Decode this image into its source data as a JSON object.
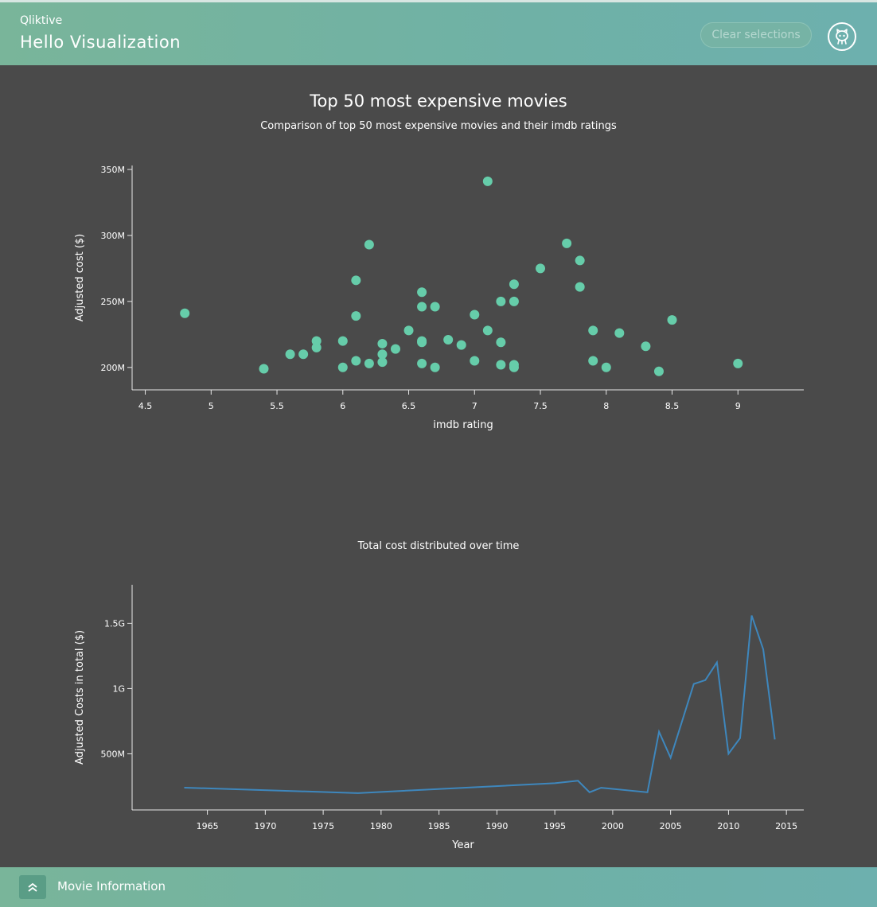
{
  "header": {
    "brand": "Qliktive",
    "title": "Hello Visualization",
    "clear_label": "Clear selections",
    "github_icon": "github-octocat-icon"
  },
  "footer": {
    "label": "Movie Information",
    "toggle_icon": "double-chevron-up-icon"
  },
  "colors": {
    "header": "#6fb1a6",
    "background": "#4a4a4a",
    "scatter_point": "#66cdaa",
    "line": "#3e87bd"
  },
  "chart_data": [
    {
      "type": "scatter",
      "title": "Top 50 most expensive movies",
      "subtitle": "Comparison of top 50 most expensive movies and their imdb ratings",
      "xlabel": "imdb rating",
      "ylabel": "Adjusted cost ($)",
      "xlim": [
        4.4,
        9.5
      ],
      "ylim": [
        183,
        353
      ],
      "x_ticks": [
        4.5,
        5,
        5.5,
        6,
        6.5,
        7,
        7.5,
        8,
        8.5,
        9
      ],
      "x_tick_labels": [
        "4.5",
        "5",
        "5.5",
        "6",
        "6.5",
        "7",
        "7.5",
        "8",
        "8.5",
        "9"
      ],
      "y_ticks": [
        200,
        250,
        300,
        350
      ],
      "y_tick_labels": [
        "200M",
        "250M",
        "300M",
        "350M"
      ],
      "points": [
        [
          4.8,
          241
        ],
        [
          5.4,
          199
        ],
        [
          5.6,
          210
        ],
        [
          5.7,
          210
        ],
        [
          5.8,
          220
        ],
        [
          5.8,
          215
        ],
        [
          6.0,
          220
        ],
        [
          6.0,
          200
        ],
        [
          6.1,
          266
        ],
        [
          6.1,
          239
        ],
        [
          6.1,
          205
        ],
        [
          6.2,
          293
        ],
        [
          6.2,
          203
        ],
        [
          6.3,
          218
        ],
        [
          6.3,
          210
        ],
        [
          6.3,
          204
        ],
        [
          6.4,
          214
        ],
        [
          6.5,
          228
        ],
        [
          6.6,
          257
        ],
        [
          6.6,
          246
        ],
        [
          6.6,
          220
        ],
        [
          6.6,
          219
        ],
        [
          6.6,
          203
        ],
        [
          6.7,
          246
        ],
        [
          6.7,
          200
        ],
        [
          6.8,
          221
        ],
        [
          6.9,
          217
        ],
        [
          7.0,
          240
        ],
        [
          7.0,
          205
        ],
        [
          7.1,
          341
        ],
        [
          7.1,
          228
        ],
        [
          7.2,
          250
        ],
        [
          7.2,
          219
        ],
        [
          7.2,
          202
        ],
        [
          7.3,
          263
        ],
        [
          7.3,
          250
        ],
        [
          7.3,
          202
        ],
        [
          7.3,
          200
        ],
        [
          7.5,
          275
        ],
        [
          7.7,
          294
        ],
        [
          7.8,
          281
        ],
        [
          7.8,
          261
        ],
        [
          7.9,
          228
        ],
        [
          7.9,
          205
        ],
        [
          8.0,
          200
        ],
        [
          8.1,
          226
        ],
        [
          8.3,
          216
        ],
        [
          8.4,
          197
        ],
        [
          8.5,
          236
        ],
        [
          9.0,
          203
        ]
      ]
    },
    {
      "type": "line",
      "title": "Total cost distributed over time",
      "xlabel": "Year",
      "ylabel": "Adjusted Costs in total ($)",
      "xlim": [
        1958.5,
        2016.5
      ],
      "ylim": [
        70,
        1795
      ],
      "x_ticks": [
        1965,
        1970,
        1975,
        1980,
        1985,
        1990,
        1995,
        2000,
        2005,
        2010,
        2015
      ],
      "x_tick_labels": [
        "1965",
        "1970",
        "1975",
        "1980",
        "1985",
        "1990",
        "1995",
        "2000",
        "2005",
        "2010",
        "2015"
      ],
      "y_ticks": [
        500,
        1000,
        1500
      ],
      "y_tick_labels": [
        "500M",
        "1G",
        "1.5G"
      ],
      "x": [
        1963,
        1978,
        1995,
        1997,
        1998,
        1999,
        2003,
        2004,
        2005,
        2007,
        2008,
        2009,
        2010,
        2011,
        2012,
        2013,
        2014
      ],
      "values": [
        241,
        199,
        275,
        294,
        205,
        240,
        205,
        669,
        470,
        1035,
        1065,
        1200,
        500,
        620,
        1560,
        1300,
        610
      ]
    }
  ]
}
